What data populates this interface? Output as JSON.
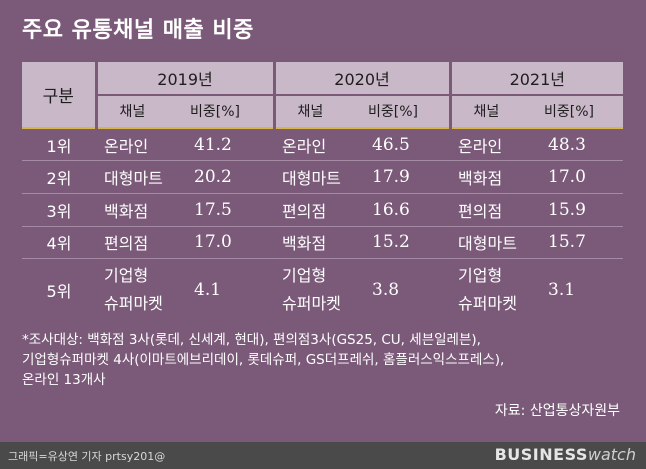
{
  "title": "주요 유통채널 매출 비중",
  "table": {
    "rank_header": "구분",
    "years": [
      "2019년",
      "2020년",
      "2021년"
    ],
    "sub_headers": {
      "channel": "채널",
      "share": "비중[%]"
    },
    "rows": [
      {
        "rank": "1위",
        "c2019": "온라인",
        "v2019": "41.2",
        "c2020": "온라인",
        "v2020": "46.5",
        "c2021": "온라인",
        "v2021": "48.3"
      },
      {
        "rank": "2위",
        "c2019": "대형마트",
        "v2019": "20.2",
        "c2020": "대형마트",
        "v2020": "17.9",
        "c2021": "백화점",
        "v2021": "17.0"
      },
      {
        "rank": "3위",
        "c2019": "백화점",
        "v2019": "17.5",
        "c2020": "편의점",
        "v2020": "16.6",
        "c2021": "편의점",
        "v2021": "15.9"
      },
      {
        "rank": "4위",
        "c2019": "편의점",
        "v2019": "17.0",
        "c2020": "백화점",
        "v2020": "15.2",
        "c2021": "대형마트",
        "v2021": "15.7"
      },
      {
        "rank": "5위",
        "c2019_l1": "기업형",
        "c2019_l2": "슈퍼마켓",
        "v2019": "4.1",
        "c2020_l1": "기업형",
        "c2020_l2": "슈퍼마켓",
        "v2020": "3.8",
        "c2021_l1": "기업형",
        "c2021_l2": "슈퍼마켓",
        "v2021": "3.1"
      }
    ]
  },
  "notes": [
    "*조사대상: 백화점 3사(롯데, 신세계, 현대), 편의점3사(GS25, CU, 세븐일레븐),",
    "기업형슈퍼마켓 4사(이마트에브리데이, 롯데슈퍼, GS더프레쉬, 홈플러스익스프레스),",
    "온라인 13개사"
  ],
  "source": "자료: 산업통상자원부",
  "footer": {
    "credit": "그래픽=유상연 기자 prtsy201@",
    "brand_bold": "BUSINESS",
    "brand_light": "watch"
  },
  "colors": {
    "background": "#7a5a78",
    "header_fill": "#c9b8c8",
    "first_row_rule": "#d7b548",
    "footer_bar": "#4a4a4a"
  }
}
